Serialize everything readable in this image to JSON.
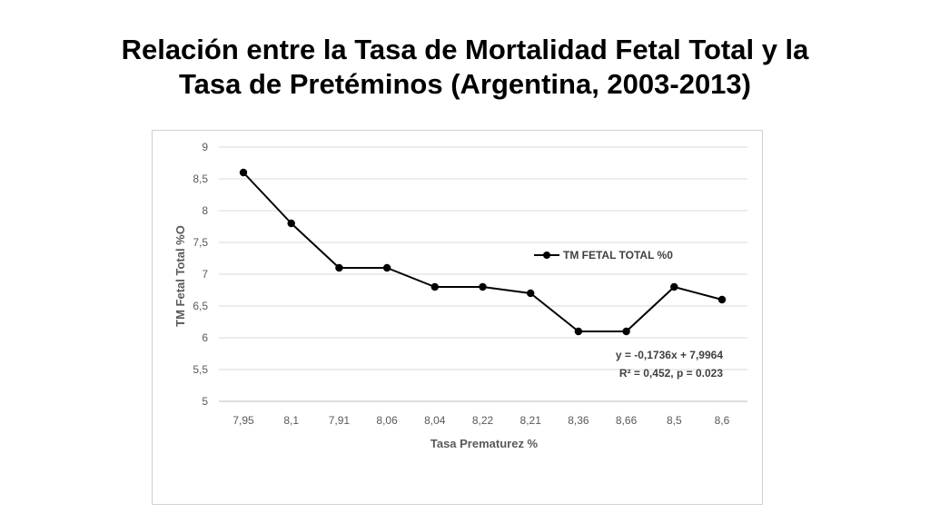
{
  "title": {
    "line1": "Relación entre la Tasa de Mortalidad Fetal Total y la",
    "line2": "Tasa de Pretéminos (Argentina, 2003-2013)"
  },
  "chart_data": {
    "type": "line",
    "categories": [
      "7,95",
      "8,1",
      "7,91",
      "8,06",
      "8,04",
      "8,22",
      "8,21",
      "8,36",
      "8,66",
      "8,5",
      "8,6"
    ],
    "series": [
      {
        "name": "TM FETAL TOTAL %0",
        "values": [
          8.6,
          7.8,
          7.1,
          7.1,
          6.8,
          6.8,
          6.7,
          6.1,
          6.1,
          6.8,
          6.6
        ],
        "color": "#000000"
      }
    ],
    "xlabel": "Tasa Prematurez %",
    "ylabel": "TM Fetal Total %O",
    "ylim": [
      5,
      9
    ],
    "y_ticks": [
      "5",
      "5,5",
      "6",
      "6,5",
      "7",
      "7,5",
      "8",
      "8,5",
      "9"
    ],
    "grid": true,
    "legend_position": "right",
    "annotation": {
      "line1": "y = -0,1736x + 7,9964",
      "line2": "R² = 0,452, p = 0.023"
    },
    "grid_color": "#d9d9d9"
  }
}
